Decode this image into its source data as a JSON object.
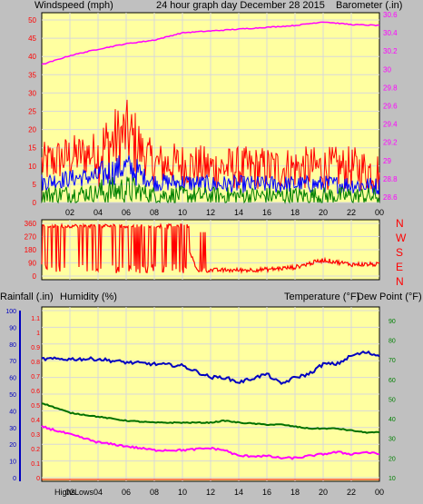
{
  "header": {
    "left_label": "Windspeed (mph)",
    "title": "24 hour graph day   December 28 2015",
    "right_label": "Barometer (.in)"
  },
  "colors": {
    "background": "#c0c0c0",
    "plot_bg": "#ffffa0",
    "grid": "#d8d8d8",
    "wind_gust": "#ff0000",
    "wind_avg": "#0000ff",
    "wind_low": "#008000",
    "barometer": "#ff00ff",
    "direction": "#ff0000",
    "humidity": "#0000c0",
    "temperature": "#007000",
    "dewpoint": "#ff00ff",
    "rain": "#ff0000",
    "title_color": "#ffff00",
    "label_red": "#ff0000",
    "label_magenta": "#ff00ff",
    "label_green": "#008000",
    "label_blue": "#0000c0"
  },
  "x_ticks": [
    "02",
    "04",
    "06",
    "08",
    "10",
    "12",
    "14",
    "16",
    "18",
    "20",
    "22",
    "00"
  ],
  "chart_data": [
    {
      "type": "line",
      "name": "wind-barometer",
      "xlabel": "",
      "ylabel_left": "Windspeed (mph)",
      "ylabel_right": "Barometer (.in)",
      "y_left_ticks": [
        0,
        5,
        10,
        15,
        20,
        25,
        30,
        35,
        40,
        45,
        50
      ],
      "y_left_lim": [
        0,
        50
      ],
      "y_right_ticks": [
        "28.6",
        "28.8",
        "29",
        "29.2",
        "29.4",
        "29.6",
        "29.8",
        "30",
        "30.2",
        "30.4",
        "30.6"
      ],
      "y_right_lim": [
        28.6,
        30.6
      ],
      "x_hours": [
        0,
        2,
        4,
        6,
        8,
        10,
        12,
        14,
        16,
        18,
        20,
        22,
        24
      ],
      "series": [
        {
          "name": "Windspeed (mph)",
          "values": [
            10,
            12,
            13,
            18,
            10,
            10,
            9,
            9,
            9,
            9,
            9,
            9,
            8
          ]
        },
        {
          "name": "Barometer (.in)",
          "values": [
            30.05,
            30.15,
            30.22,
            30.28,
            30.32,
            30.4,
            30.42,
            30.44,
            30.46,
            30.48,
            30.52,
            30.49,
            30.48
          ]
        }
      ]
    },
    {
      "type": "line",
      "name": "wind-direction",
      "right_labels": [
        "N",
        "W",
        "S",
        "E",
        "N"
      ],
      "y_ticks": [
        0,
        90,
        180,
        270,
        360
      ],
      "y_lim": [
        0,
        360
      ],
      "x_hours": [
        0,
        2,
        4,
        6,
        8,
        10,
        11,
        14,
        16,
        18,
        20,
        22,
        24
      ],
      "series": [
        {
          "name": "Direction",
          "values": [
            340,
            250,
            300,
            200,
            300,
            320,
            40,
            40,
            45,
            60,
            110,
            80,
            80
          ]
        }
      ]
    },
    {
      "type": "line",
      "name": "humidity-temperature",
      "ylabel_rain": "Rainfall (.in)",
      "ylabel_humidity": "Humidity (%)",
      "ylabel_temperature": "Temperature (°F)",
      "ylabel_dewpoint": "Dew Point (°F)",
      "rain_ticks": [
        "0",
        "0.1",
        "0.2",
        "0.3",
        "0.4",
        "0.5",
        "0.6",
        "0.7",
        "0.8",
        "0.9",
        "1",
        "1.1"
      ],
      "humidity_ticks": [
        0,
        10,
        20,
        30,
        40,
        50,
        60,
        70,
        80,
        90,
        100
      ],
      "humidity_lim": [
        0,
        100
      ],
      "temp_ticks": [
        10,
        20,
        30,
        40,
        50,
        60,
        70,
        80,
        90
      ],
      "temp_lim": [
        10,
        95
      ],
      "x_hours": [
        0,
        2,
        4,
        6,
        8,
        10,
        12,
        13,
        14,
        16,
        17,
        18,
        19,
        20,
        21,
        22,
        23,
        24
      ],
      "series": [
        {
          "name": "Humidity (%)",
          "values": [
            71,
            71,
            71,
            69,
            68,
            67,
            60,
            60,
            57,
            62,
            56,
            60,
            62,
            68,
            68,
            73,
            75,
            73
          ]
        },
        {
          "name": "Temperature (°F)",
          "values": [
            48,
            43,
            41,
            39,
            38,
            38,
            38,
            39,
            38,
            37,
            37,
            36,
            35,
            35,
            35,
            34,
            33,
            33
          ]
        },
        {
          "name": "Dew Point (°F)",
          "values": [
            36,
            32,
            28,
            26,
            24,
            24,
            25,
            24,
            21,
            21,
            20,
            20,
            21,
            22,
            23,
            22,
            23,
            22
          ]
        },
        {
          "name": "Rainfall (.in)",
          "values": [
            0,
            0,
            0,
            0,
            0,
            0,
            0,
            0,
            0,
            0,
            0,
            0,
            0,
            0,
            0,
            0,
            0,
            0
          ]
        }
      ]
    }
  ],
  "bottom_labels": {
    "highs": "Highs",
    "lows": "Lows"
  }
}
